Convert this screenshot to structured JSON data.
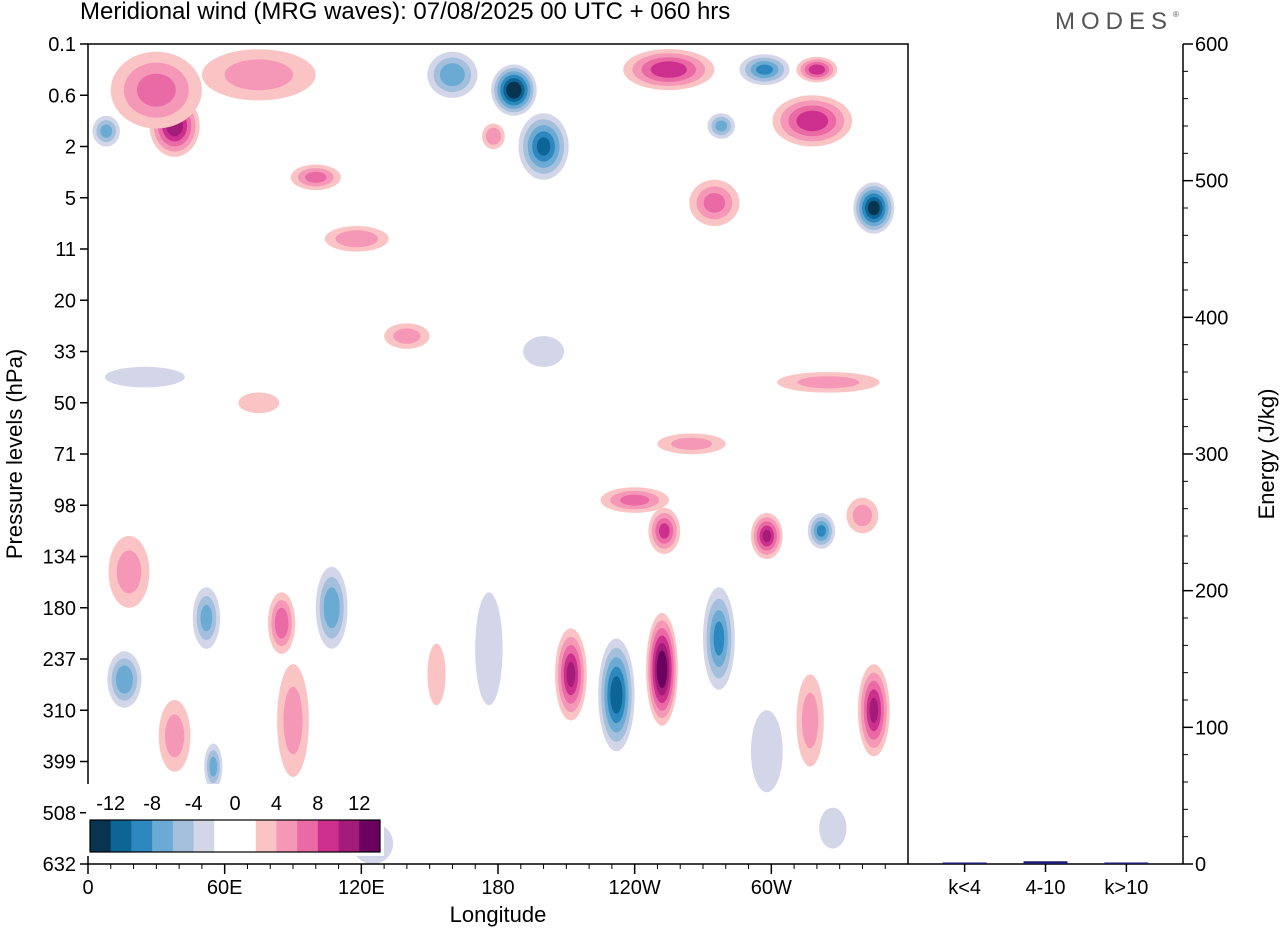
{
  "page": {
    "title": "Meridional wind (MRG waves):  07/08/2025  00 UTC  + 060 hrs",
    "brand": "MODES",
    "brand_mark": "®"
  },
  "chart_data": [
    {
      "type": "heatmap",
      "title": "Meridional wind (MRG waves):  07/08/2025  00 UTC  + 060 hrs",
      "xlabel": "Longitude",
      "ylabel": "Pressure levels (hPa)",
      "x_ticks": [
        {
          "lon": 0,
          "label": "0"
        },
        {
          "lon": 60,
          "label": "60E"
        },
        {
          "lon": 120,
          "label": "120E"
        },
        {
          "lon": 180,
          "label": "180"
        },
        {
          "lon": 240,
          "label": "120W"
        },
        {
          "lon": 300,
          "label": "60W"
        }
      ],
      "x_range": [
        0,
        360
      ],
      "y_levels": [
        "0.1",
        "0.6",
        "2",
        "5",
        "11",
        "20",
        "33",
        "50",
        "71",
        "98",
        "134",
        "180",
        "237",
        "310",
        "399",
        "508",
        "632"
      ],
      "y_scale": "level-index (0.1 hPa at top, 632 hPa at bottom)",
      "colorbar": {
        "labels": [
          "-12",
          "-8",
          "-4",
          "0",
          "4",
          "8",
          "12"
        ],
        "boundaries": [
          -14,
          -12,
          -10,
          -8,
          -6,
          -4,
          -2,
          0,
          2,
          4,
          6,
          8,
          10,
          12,
          14
        ],
        "colors": [
          "#08344f",
          "#0d6596",
          "#2e88c0",
          "#6aaad3",
          "#a3bfdc",
          "#d3d6e8",
          "#ffffff",
          "#ffffff",
          "#fbc4c4",
          "#f598b8",
          "#ea6aa6",
          "#cd2f8e",
          "#a31c7a",
          "#6b005e"
        ]
      },
      "anomalies": [
        {
          "lon": 38,
          "level": 1.6,
          "value": 11,
          "w": 22,
          "h": 1.2
        },
        {
          "lon": 30,
          "level": 0.9,
          "value": 6,
          "w": 40,
          "h": 1.5
        },
        {
          "lon": 8,
          "level": 1.7,
          "value": -6,
          "w": 12,
          "h": 0.6
        },
        {
          "lon": 75,
          "level": 0.6,
          "value": 4,
          "w": 50,
          "h": 1.0
        },
        {
          "lon": 100,
          "level": 2.6,
          "value": 6,
          "w": 22,
          "h": 0.5
        },
        {
          "lon": 118,
          "level": 3.8,
          "value": 5,
          "w": 28,
          "h": 0.5
        },
        {
          "lon": 160,
          "level": 0.6,
          "value": -7,
          "w": 22,
          "h": 0.9
        },
        {
          "lon": 187,
          "level": 0.9,
          "value": -14,
          "w": 20,
          "h": 1.0
        },
        {
          "lon": 200,
          "level": 2.0,
          "value": -10,
          "w": 22,
          "h": 1.3
        },
        {
          "lon": 178,
          "level": 1.8,
          "value": 5,
          "w": 10,
          "h": 0.5
        },
        {
          "lon": 255,
          "level": 0.5,
          "value": 9,
          "w": 40,
          "h": 0.8
        },
        {
          "lon": 297,
          "level": 0.5,
          "value": -8,
          "w": 22,
          "h": 0.6
        },
        {
          "lon": 320,
          "level": 0.5,
          "value": 9,
          "w": 18,
          "h": 0.5
        },
        {
          "lon": 318,
          "level": 1.5,
          "value": 9,
          "w": 35,
          "h": 1.0
        },
        {
          "lon": 278,
          "level": 1.6,
          "value": -6,
          "w": 12,
          "h": 0.5
        },
        {
          "lon": 275,
          "level": 3.1,
          "value": 6,
          "w": 22,
          "h": 0.9
        },
        {
          "lon": 345,
          "level": 3.2,
          "value": -13,
          "w": 18,
          "h": 1.0
        },
        {
          "lon": 140,
          "level": 5.7,
          "value": 4,
          "w": 20,
          "h": 0.5
        },
        {
          "lon": 200,
          "level": 6.0,
          "value": -3,
          "w": 18,
          "h": 0.6
        },
        {
          "lon": 25,
          "level": 6.5,
          "value": -3,
          "w": 35,
          "h": 0.4
        },
        {
          "lon": 75,
          "level": 7.0,
          "value": 3,
          "w": 18,
          "h": 0.4
        },
        {
          "lon": 325,
          "level": 6.6,
          "value": 4,
          "w": 45,
          "h": 0.4
        },
        {
          "lon": 265,
          "level": 7.8,
          "value": 4,
          "w": 30,
          "h": 0.4
        },
        {
          "lon": 240,
          "level": 8.9,
          "value": 6,
          "w": 30,
          "h": 0.5
        },
        {
          "lon": 253,
          "level": 9.5,
          "value": 8,
          "w": 14,
          "h": 0.9
        },
        {
          "lon": 298,
          "level": 9.6,
          "value": 10,
          "w": 14,
          "h": 0.9
        },
        {
          "lon": 322,
          "level": 9.5,
          "value": -8,
          "w": 12,
          "h": 0.7
        },
        {
          "lon": 340,
          "level": 9.2,
          "value": 4,
          "w": 14,
          "h": 0.7
        },
        {
          "lon": 18,
          "level": 10.3,
          "value": 4,
          "w": 18,
          "h": 1.4
        },
        {
          "lon": 52,
          "level": 11.2,
          "value": -6,
          "w": 12,
          "h": 1.2
        },
        {
          "lon": 85,
          "level": 11.3,
          "value": 7,
          "w": 12,
          "h": 1.2
        },
        {
          "lon": 107,
          "level": 11.0,
          "value": -7,
          "w": 14,
          "h": 1.6
        },
        {
          "lon": 16,
          "level": 12.4,
          "value": -7,
          "w": 15,
          "h": 1.1
        },
        {
          "lon": 38,
          "level": 13.5,
          "value": 4,
          "w": 14,
          "h": 1.4
        },
        {
          "lon": 55,
          "level": 14.1,
          "value": -6,
          "w": 8,
          "h": 0.9
        },
        {
          "lon": 90,
          "level": 13.2,
          "value": 4,
          "w": 14,
          "h": 2.2
        },
        {
          "lon": 153,
          "level": 12.3,
          "value": 3,
          "w": 8,
          "h": 1.2
        },
        {
          "lon": 176,
          "level": 11.8,
          "value": -3,
          "w": 12,
          "h": 2.2
        },
        {
          "lon": 212,
          "level": 12.3,
          "value": 10,
          "w": 14,
          "h": 1.8
        },
        {
          "lon": 232,
          "level": 12.7,
          "value": -11,
          "w": 16,
          "h": 2.2
        },
        {
          "lon": 252,
          "level": 12.2,
          "value": 14,
          "w": 14,
          "h": 2.2
        },
        {
          "lon": 277,
          "level": 11.6,
          "value": -8,
          "w": 14,
          "h": 2.0
        },
        {
          "lon": 298,
          "level": 13.8,
          "value": -3,
          "w": 14,
          "h": 1.6
        },
        {
          "lon": 317,
          "level": 13.2,
          "value": 4,
          "w": 12,
          "h": 1.8
        },
        {
          "lon": 345,
          "level": 13.0,
          "value": 10,
          "w": 14,
          "h": 1.8
        },
        {
          "lon": 327,
          "level": 15.3,
          "value": -3,
          "w": 12,
          "h": 0.8
        },
        {
          "lon": 125,
          "level": 15.6,
          "value": -3,
          "w": 18,
          "h": 0.8
        }
      ],
      "side_panel": {
        "type": "bar",
        "categories": [
          "k<4",
          "4-10",
          "k>10"
        ],
        "values": [
          0,
          2,
          0
        ],
        "ylabel": "Energy (J/kg)",
        "ylim": [
          0,
          600
        ],
        "y_ticks": [
          "0",
          "100",
          "200",
          "300",
          "400",
          "500",
          "600"
        ]
      }
    }
  ]
}
